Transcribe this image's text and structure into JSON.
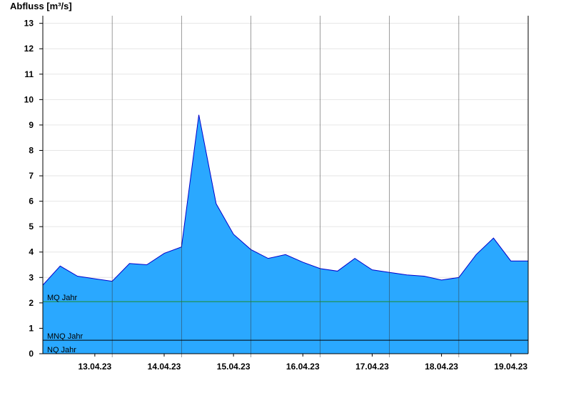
{
  "chart_data": {
    "type": "area",
    "ylabel": "Abfluss [m³/s]",
    "ylim": [
      0,
      13.3
    ],
    "yticks": [
      0,
      1,
      2,
      3,
      4,
      5,
      6,
      7,
      8,
      9,
      10,
      11,
      12,
      13
    ],
    "x_start": "2023-04-12T18:00",
    "x_end": "2023-04-19T18:00",
    "xtick_labels": [
      "13.04.23",
      "14.04.23",
      "15.04.23",
      "16.04.23",
      "17.04.23",
      "18.04.23",
      "19.04.23"
    ],
    "reference_lines": [
      {
        "label": "MQ Jahr",
        "value": 2.05,
        "color": "#1e8c2a"
      },
      {
        "label": "MNQ Jahr",
        "value": 0.53,
        "color": "#000000"
      },
      {
        "label": "NQ Jahr",
        "value": 0.0,
        "color": "#000000"
      }
    ],
    "fill_color": "#2aa8ff",
    "line_color": "#0000cc",
    "series": [
      {
        "x": [
          "2023-04-12T18:00",
          "2023-04-13T00:00",
          "2023-04-13T06:00",
          "2023-04-13T12:00",
          "2023-04-13T18:00",
          "2023-04-14T00:00",
          "2023-04-14T06:00",
          "2023-04-14T12:00",
          "2023-04-14T18:00",
          "2023-04-15T00:00",
          "2023-04-15T06:00",
          "2023-04-15T12:00",
          "2023-04-15T18:00",
          "2023-04-16T00:00",
          "2023-04-16T06:00",
          "2023-04-16T12:00",
          "2023-04-16T18:00",
          "2023-04-17T00:00",
          "2023-04-17T06:00",
          "2023-04-17T12:00",
          "2023-04-17T18:00",
          "2023-04-18T00:00",
          "2023-04-18T06:00",
          "2023-04-18T12:00",
          "2023-04-18T18:00",
          "2023-04-19T00:00",
          "2023-04-19T06:00",
          "2023-04-19T12:00",
          "2023-04-19T18:00"
        ],
        "values": [
          2.7,
          3.45,
          3.05,
          2.95,
          2.85,
          3.55,
          3.5,
          3.95,
          4.2,
          9.4,
          5.9,
          4.7,
          4.1,
          3.75,
          3.9,
          3.6,
          3.35,
          3.25,
          3.75,
          3.3,
          3.2,
          3.1,
          3.05,
          2.9,
          3.0,
          3.9,
          4.55,
          3.65,
          3.65
        ]
      }
    ]
  }
}
